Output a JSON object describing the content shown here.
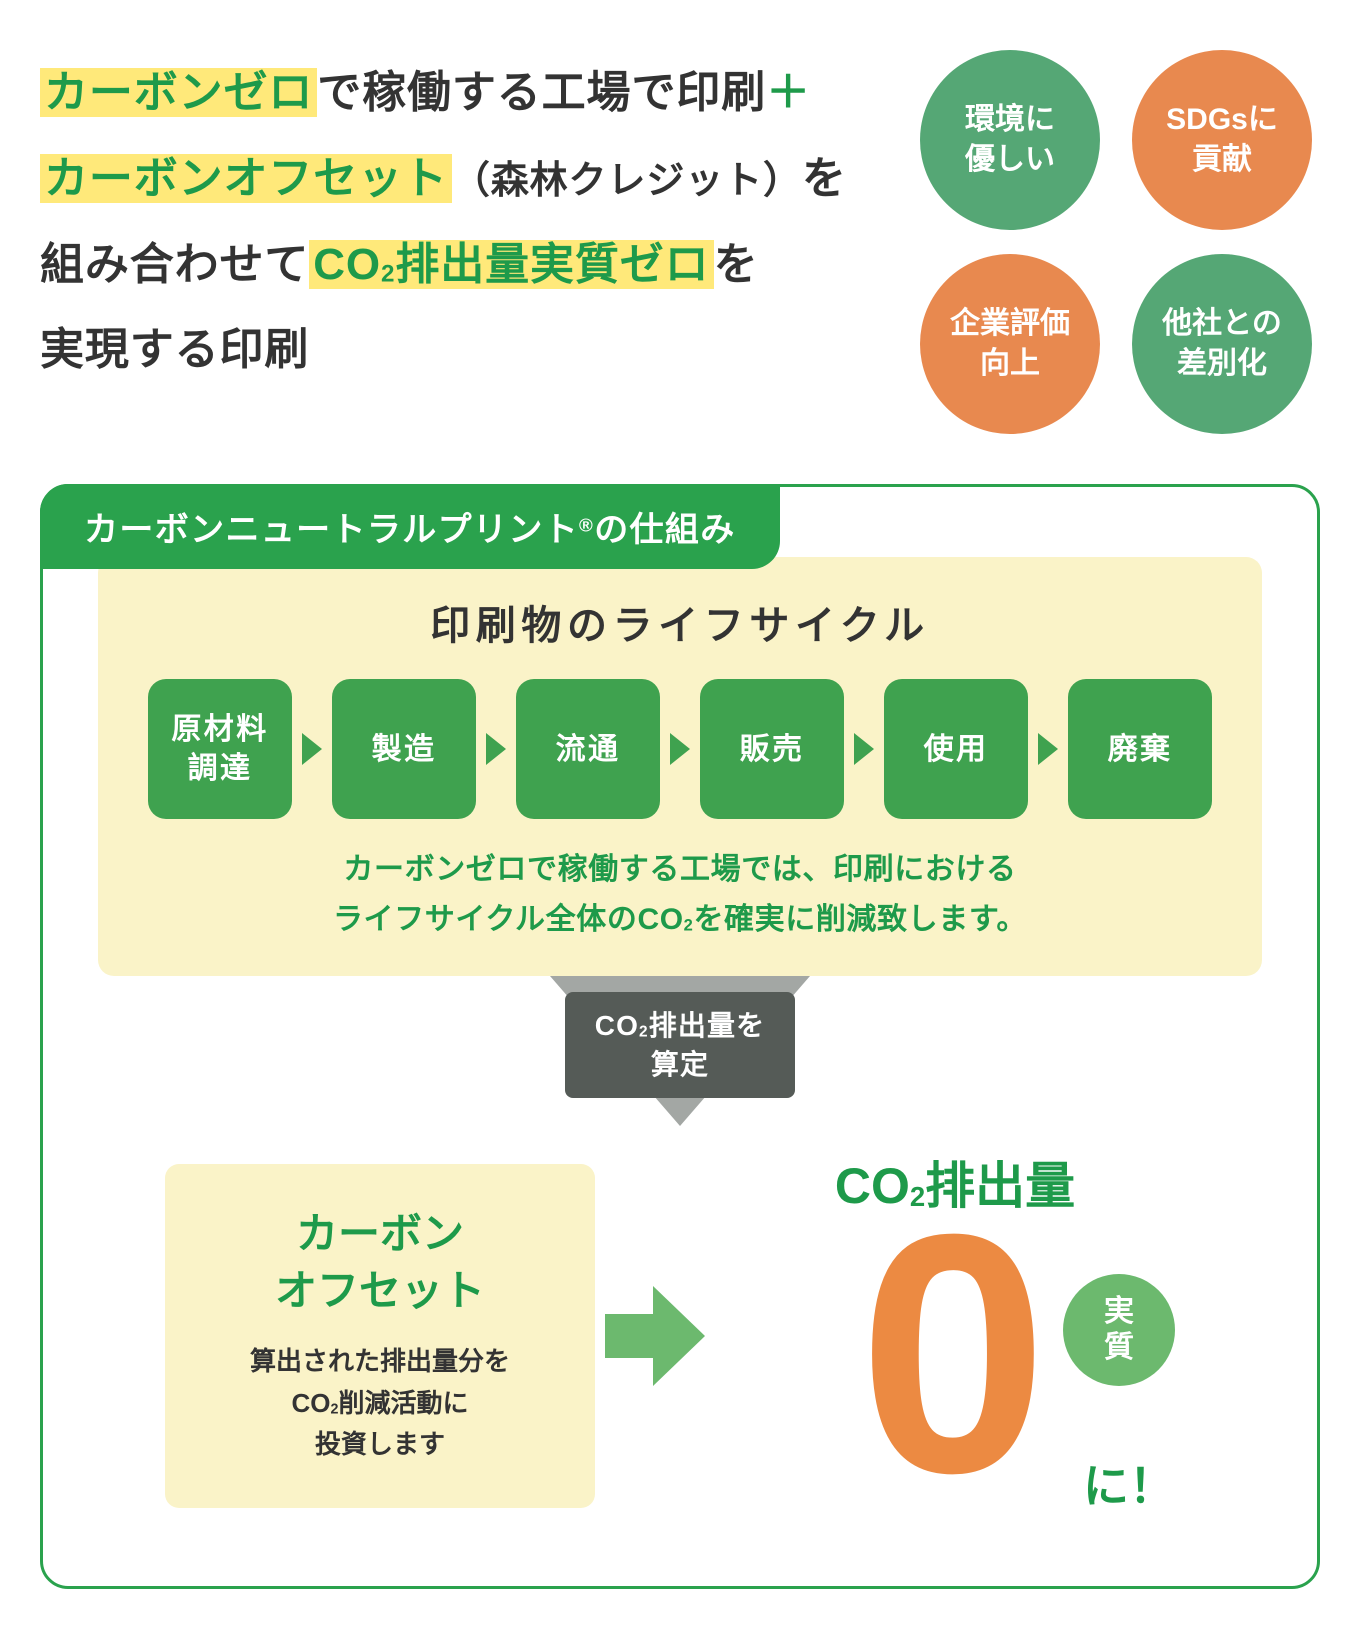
{
  "colors": {
    "green_brand": "#1e9a4a",
    "green_step": "#3fa24f",
    "green_circle": "#55a775",
    "orange_circle": "#e8894f",
    "orange_zero": "#ec8a42",
    "highlight_bg": "#ffe97a",
    "card_bg": "#faf3c8",
    "arrow_gray": "#a3a7a4",
    "label_gray": "#555b57",
    "text_dark": "#333333"
  },
  "headline": {
    "p1_hl": "カーボンゼロ",
    "p1_tail": "で稼働する工場で印刷",
    "plus": "＋",
    "p2_hl": "カーボンオフセット",
    "p2_small": "（森林クレジット）",
    "p2_tail": "を",
    "p3_head": "組み合わせて",
    "p3_hl_a": "CO",
    "p3_hl_sub": "2",
    "p3_hl_b": "排出量実質ゼロ",
    "p3_tail": "を",
    "p4": "実現する印刷"
  },
  "circles": [
    {
      "text": "環境に\n優しい",
      "color": "#55a775"
    },
    {
      "text": "SDGsに\n貢献",
      "color": "#e8894f"
    },
    {
      "text": "企業評価\n向上",
      "color": "#e8894f"
    },
    {
      "text": "他社との\n差別化",
      "color": "#55a775"
    }
  ],
  "mechanism_tab": {
    "text": "カーボンニュートラルプリント",
    "reg": "®",
    "tail": "の仕組み"
  },
  "lifecycle": {
    "title": "印刷物のライフサイクル",
    "steps": [
      "原材料\n調達",
      "製造",
      "流通",
      "販売",
      "使用",
      "廃棄"
    ],
    "step_color": "#3fa24f",
    "arrow_color": "#3fa24f",
    "note_line1": "カーボンゼロで稼働する工場では、印刷における",
    "note_line2_a": "ライフサイクル全体のCO",
    "note_line2_sub": "2",
    "note_line2_b": "を確実に削減致します。",
    "note_color": "#1e9a4a"
  },
  "down": {
    "arrow_color": "#a3a7a4",
    "label_a": "CO",
    "label_sub": "2",
    "label_b": "排出量を",
    "label_c": "算定"
  },
  "offset": {
    "title_line1": "カーボン",
    "title_line2": "オフセット",
    "title_color": "#1e9a4a",
    "desc_line1": "算出された排出量分を",
    "desc_line2_a": "CO",
    "desc_line2_sub": "2",
    "desc_line2_b": "削減活動に",
    "desc_line3": "投資します"
  },
  "right_arrow_color": "#6cb96e",
  "zero": {
    "title_a": "CO",
    "title_sub": "2",
    "title_b": "排出量",
    "title_color": "#1e9a4a",
    "zero_char": "0",
    "zero_color": "#ec8a42",
    "pill_text": "実\n質",
    "pill_color": "#6cb96e",
    "ni_text": "に！",
    "ni_color": "#1e9a4a"
  }
}
